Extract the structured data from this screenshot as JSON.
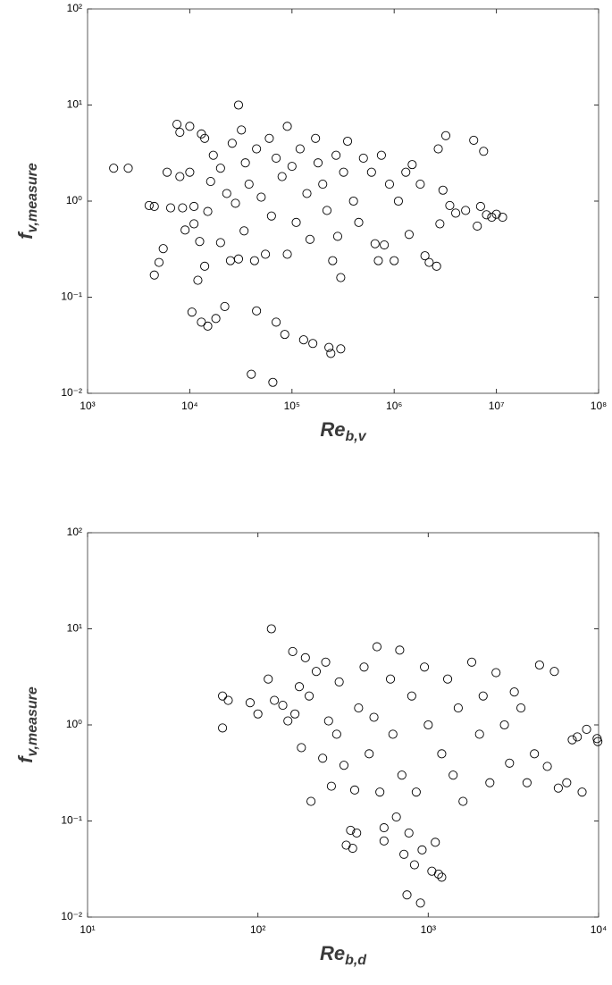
{
  "chart_data": [
    {
      "type": "scatter",
      "log": true,
      "marker": "circle",
      "color": "#000000",
      "xlabel": "Re",
      "xlabel_sub": "b,v",
      "ylabel": "f",
      "ylabel_sub": "v,measure",
      "xlim": [
        1000,
        100000000
      ],
      "ylim": [
        0.01,
        100
      ],
      "xticks": [
        {
          "value": 1000,
          "label": "10³"
        },
        {
          "value": 10000,
          "label": "10⁴"
        },
        {
          "value": 100000,
          "label": "10⁵"
        },
        {
          "value": 1000000,
          "label": "10⁶"
        },
        {
          "value": 10000000,
          "label": "10⁷"
        },
        {
          "value": 100000000,
          "label": "10⁸"
        }
      ],
      "yticks": [
        {
          "value": 0.01,
          "label": "10⁻²"
        },
        {
          "value": 0.1,
          "label": "10⁻¹"
        },
        {
          "value": 1,
          "label": "10⁰"
        },
        {
          "value": 10,
          "label": "10¹"
        },
        {
          "value": 100,
          "label": "10²"
        }
      ],
      "x": [
        1800,
        2500,
        4000,
        4500,
        4500,
        5000,
        5500,
        6000,
        6500,
        7500,
        8000,
        8000,
        8500,
        9000,
        10000,
        10000,
        10500,
        11000,
        11000,
        12000,
        12500,
        13000,
        13000,
        14000,
        14000,
        15000,
        15000,
        16000,
        17000,
        18000,
        20000,
        20000,
        22000,
        23000,
        25000,
        26000,
        28000,
        30000,
        30000,
        32000,
        34000,
        35000,
        38000,
        40000,
        43000,
        45000,
        45000,
        50000,
        55000,
        60000,
        63000,
        65000,
        70000,
        70000,
        80000,
        85000,
        90000,
        90000,
        100000,
        110000,
        120000,
        130000,
        140000,
        150000,
        160000,
        170000,
        180000,
        200000,
        220000,
        230000,
        240000,
        250000,
        270000,
        280000,
        300000,
        300000,
        320000,
        350000,
        400000,
        450000,
        500000,
        600000,
        650000,
        700000,
        750000,
        800000,
        900000,
        1000000,
        1100000,
        1300000,
        1400000,
        1500000,
        1800000,
        2000000,
        2200000,
        2600000,
        2700000,
        2800000,
        3000000,
        3200000,
        3500000,
        4000000,
        5000000,
        6000000,
        6500000,
        7000000,
        7500000,
        8000000,
        9000000,
        10000000,
        11500000
      ],
      "y": [
        2.2,
        2.2,
        0.9,
        0.88,
        0.17,
        0.23,
        0.32,
        2.0,
        0.85,
        6.3,
        5.2,
        1.8,
        0.85,
        0.5,
        6.0,
        2.0,
        0.07,
        0.88,
        0.58,
        0.15,
        0.38,
        0.055,
        5.0,
        4.5,
        0.21,
        0.05,
        0.78,
        1.6,
        3.0,
        0.06,
        0.37,
        2.2,
        0.08,
        1.2,
        0.24,
        4.0,
        0.95,
        10.0,
        0.25,
        5.5,
        0.49,
        2.5,
        1.5,
        0.0158,
        0.24,
        0.072,
        3.5,
        1.1,
        0.28,
        4.5,
        0.7,
        0.013,
        0.055,
        2.8,
        1.8,
        0.041,
        6.0,
        0.28,
        2.3,
        0.6,
        3.5,
        0.036,
        1.2,
        0.4,
        0.033,
        4.5,
        2.5,
        1.5,
        0.8,
        0.03,
        0.026,
        0.24,
        3.0,
        0.43,
        0.029,
        0.16,
        2.0,
        4.2,
        1.0,
        0.6,
        2.8,
        2.0,
        0.36,
        0.24,
        3.0,
        0.35,
        1.5,
        0.24,
        1.0,
        2.0,
        0.45,
        2.4,
        1.5,
        0.27,
        0.23,
        0.21,
        3.5,
        0.58,
        1.3,
        4.8,
        0.9,
        0.75,
        0.8,
        4.3,
        0.55,
        0.88,
        3.3,
        0.72,
        0.68,
        0.73,
        0.68
      ]
    },
    {
      "type": "scatter",
      "log": true,
      "marker": "circle",
      "color": "#000000",
      "xlabel": "Re",
      "xlabel_sub": "b,d",
      "ylabel": "f",
      "ylabel_sub": "v,measure",
      "xlim": [
        10,
        10000
      ],
      "ylim": [
        0.01,
        100
      ],
      "xticks": [
        {
          "value": 10,
          "label": "10¹"
        },
        {
          "value": 100,
          "label": "10²"
        },
        {
          "value": 1000,
          "label": "10³"
        },
        {
          "value": 10000,
          "label": "10⁴"
        }
      ],
      "yticks": [
        {
          "value": 0.01,
          "label": "10⁻²"
        },
        {
          "value": 0.1,
          "label": "10⁻¹"
        },
        {
          "value": 1,
          "label": "10⁰"
        },
        {
          "value": 10,
          "label": "10¹"
        },
        {
          "value": 100,
          "label": "10²"
        }
      ],
      "x": [
        62,
        62,
        67,
        90,
        100,
        115,
        120,
        125,
        140,
        150,
        160,
        165,
        175,
        180,
        190,
        200,
        205,
        220,
        240,
        250,
        260,
        270,
        290,
        300,
        320,
        330,
        350,
        360,
        370,
        380,
        390,
        420,
        450,
        480,
        500,
        520,
        550,
        550,
        600,
        620,
        650,
        680,
        700,
        720,
        750,
        770,
        800,
        830,
        850,
        900,
        920,
        950,
        1000,
        1050,
        1100,
        1150,
        1200,
        1200,
        1300,
        1400,
        1500,
        1600,
        1800,
        2000,
        2100,
        2300,
        2500,
        2800,
        3000,
        3200,
        3500,
        3800,
        4200,
        4500,
        5000,
        5500,
        5800,
        6500,
        7000,
        7500,
        8000,
        8500,
        9800,
        9900
      ],
      "y": [
        2.0,
        0.93,
        1.8,
        1.7,
        1.3,
        3.0,
        10.0,
        1.8,
        1.6,
        1.1,
        5.8,
        1.3,
        2.5,
        0.58,
        5.0,
        2.0,
        0.16,
        3.6,
        0.45,
        4.5,
        1.1,
        0.23,
        0.8,
        2.8,
        0.38,
        0.056,
        0.08,
        0.052,
        0.21,
        0.075,
        1.5,
        4.0,
        0.5,
        1.2,
        6.5,
        0.2,
        0.085,
        0.062,
        3.0,
        0.8,
        0.11,
        6.0,
        0.3,
        0.045,
        0.017,
        0.075,
        2.0,
        0.035,
        0.2,
        0.014,
        0.05,
        4.0,
        1.0,
        0.03,
        0.06,
        0.028,
        0.026,
        0.5,
        3.0,
        0.3,
        1.5,
        0.16,
        4.5,
        0.8,
        2.0,
        0.25,
        3.5,
        1.0,
        0.4,
        2.2,
        1.5,
        0.25,
        0.5,
        4.2,
        0.37,
        3.6,
        0.22,
        0.25,
        0.7,
        0.75,
        0.2,
        0.9,
        0.72,
        0.67
      ]
    }
  ]
}
